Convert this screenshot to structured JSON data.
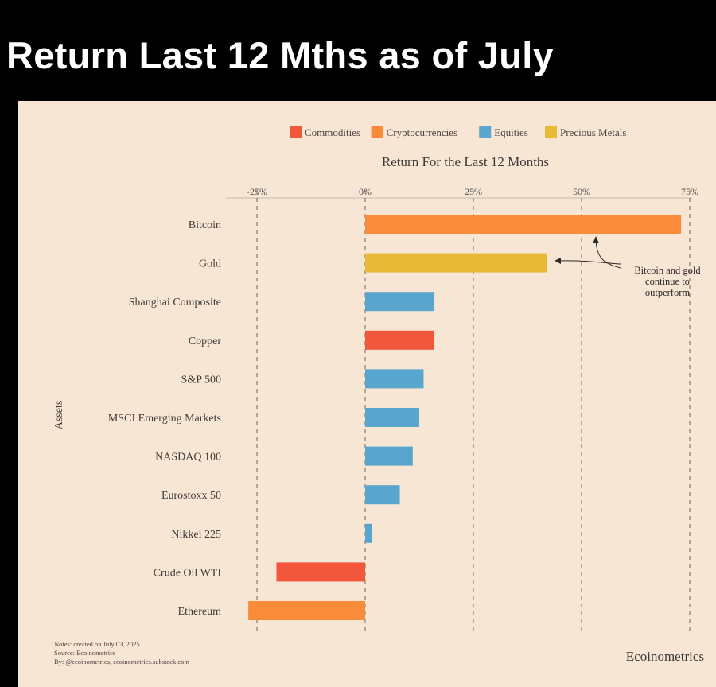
{
  "headline": "Return Last 12 Mths as of July",
  "colors": {
    "Commodities": "#f2573b",
    "Cryptocurrencies": "#f98b3a",
    "Equities": "#58a6cd",
    "Precious Metals": "#e8ba36",
    "background": "#f7e6d3"
  },
  "chart_data": {
    "type": "bar",
    "orientation": "horizontal",
    "title": "Return For the Last 12 Months",
    "ylabel": "Assets",
    "xlim": [
      -25,
      75
    ],
    "x_ticks": [
      -25,
      0,
      25,
      50,
      75
    ],
    "x_tick_labels": [
      "-25%",
      "0%",
      "25%",
      "50%",
      "75%"
    ],
    "legend": {
      "placement": "top",
      "entries": [
        "Commodities",
        "Cryptocurrencies",
        "Equities",
        "Precious Metals"
      ]
    },
    "bars": [
      {
        "label": "Bitcoin",
        "value": 73,
        "group": "Cryptocurrencies"
      },
      {
        "label": "Gold",
        "value": 42,
        "group": "Precious Metals"
      },
      {
        "label": "Shanghai Composite",
        "value": 16,
        "group": "Equities"
      },
      {
        "label": "Copper",
        "value": 16,
        "group": "Commodities"
      },
      {
        "label": "S&P 500",
        "value": 13.5,
        "group": "Equities"
      },
      {
        "label": "MSCI Emerging Markets",
        "value": 12.5,
        "group": "Equities"
      },
      {
        "label": "NASDAQ 100",
        "value": 11,
        "group": "Equities"
      },
      {
        "label": "Eurostoxx 50",
        "value": 8,
        "group": "Equities"
      },
      {
        "label": "Nikkei 225",
        "value": 1.5,
        "group": "Equities"
      },
      {
        "label": "Crude Oil WTI",
        "value": -20.5,
        "group": "Commodities"
      },
      {
        "label": "Ethereum",
        "value": -27,
        "group": "Cryptocurrencies"
      }
    ],
    "annotation": {
      "lines": [
        "Bitcoin and gold",
        "continue to",
        "outperform"
      ]
    },
    "notes": [
      "Notes: created on July 03, 2025",
      "Source: Ecoinometrics",
      "By: @ecoinometrics, ecoinometrics.substack.com"
    ],
    "brand": "Ecoinometrics"
  }
}
